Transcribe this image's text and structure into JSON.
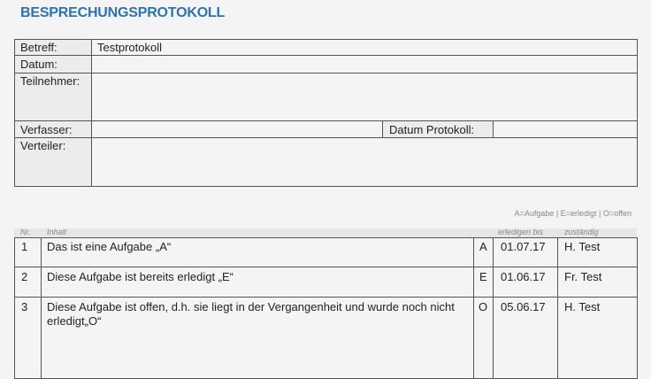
{
  "title": "BESPRECHUNGSPROTOKOLL",
  "header": {
    "betreff_label": "Betreff:",
    "betreff_value": "Testprotokoll",
    "datum_label": "Datum:",
    "teilnehmer_label": "Teilnehmer:",
    "verfasser_label": "Verfasser:",
    "datum_protokoll_label": "Datum Protokoll:",
    "verteiler_label": "Verteiler:"
  },
  "legend": "A=Aufgabe | E=erledigt | O=offen",
  "columns": {
    "nr": "Nr.",
    "inhalt": "Inhalt",
    "erledigen": "erledigen bis",
    "zustaendig": "zuständig"
  },
  "rows": [
    {
      "nr": "1",
      "inhalt": "Das ist eine Aufgabe „A“",
      "status": "A",
      "date": "01.07.17",
      "person": "H. Test"
    },
    {
      "nr": "2",
      "inhalt": "Diese Aufgabe ist bereits erledigt „E“",
      "status": "E",
      "date": "01.06.17",
      "person": "Fr. Test"
    },
    {
      "nr": "3",
      "inhalt": "Diese Aufgabe ist offen, d.h. sie liegt in der Vergangenheit und wurde noch nicht",
      "inhalt2": "erledigt„O“",
      "status": "O",
      "date": "05.06.17",
      "person": "H. Test"
    }
  ]
}
